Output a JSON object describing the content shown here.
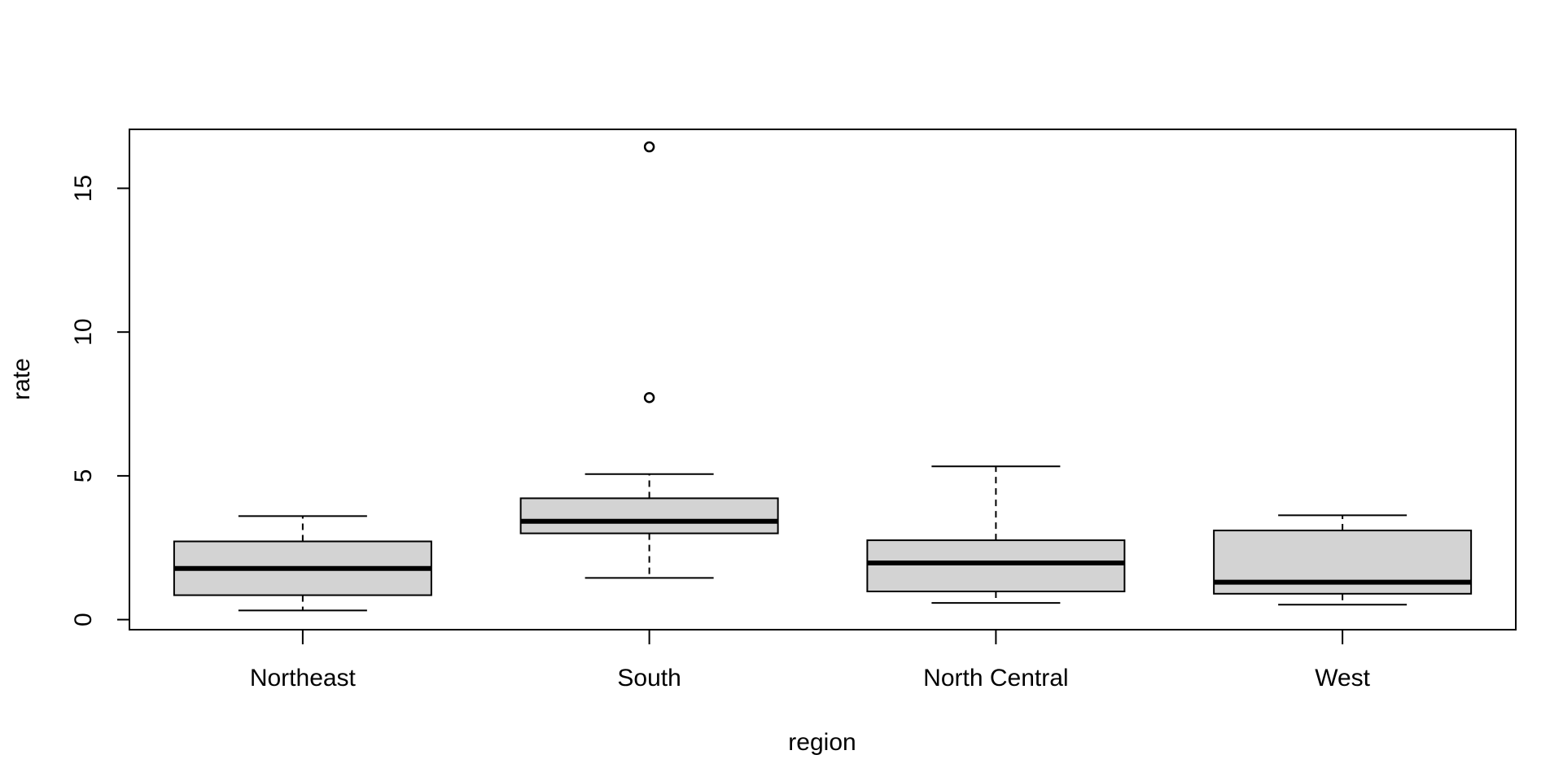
{
  "chart_data": {
    "type": "box",
    "title": "",
    "xlabel": "region",
    "ylabel": "rate",
    "categories": [
      "Northeast",
      "South",
      "North Central",
      "West"
    ],
    "yticks": [
      0,
      5,
      10,
      15
    ],
    "ylim": [
      -0.35,
      17.05
    ],
    "grid": false,
    "box_fill": "#d3d3d3",
    "boxes": [
      {
        "name": "Northeast",
        "min": 0.32,
        "q1": 0.85,
        "median": 1.78,
        "q3": 2.72,
        "max": 3.6,
        "outliers": []
      },
      {
        "name": "South",
        "min": 1.45,
        "q1": 3.0,
        "median": 3.42,
        "q3": 4.22,
        "max": 5.06,
        "outliers": [
          7.72,
          16.44
        ]
      },
      {
        "name": "North Central",
        "min": 0.58,
        "q1": 0.98,
        "median": 1.97,
        "q3": 2.76,
        "max": 5.33,
        "outliers": []
      },
      {
        "name": "West",
        "min": 0.52,
        "q1": 0.9,
        "median": 1.3,
        "q3": 3.1,
        "max": 3.63,
        "outliers": []
      }
    ]
  }
}
